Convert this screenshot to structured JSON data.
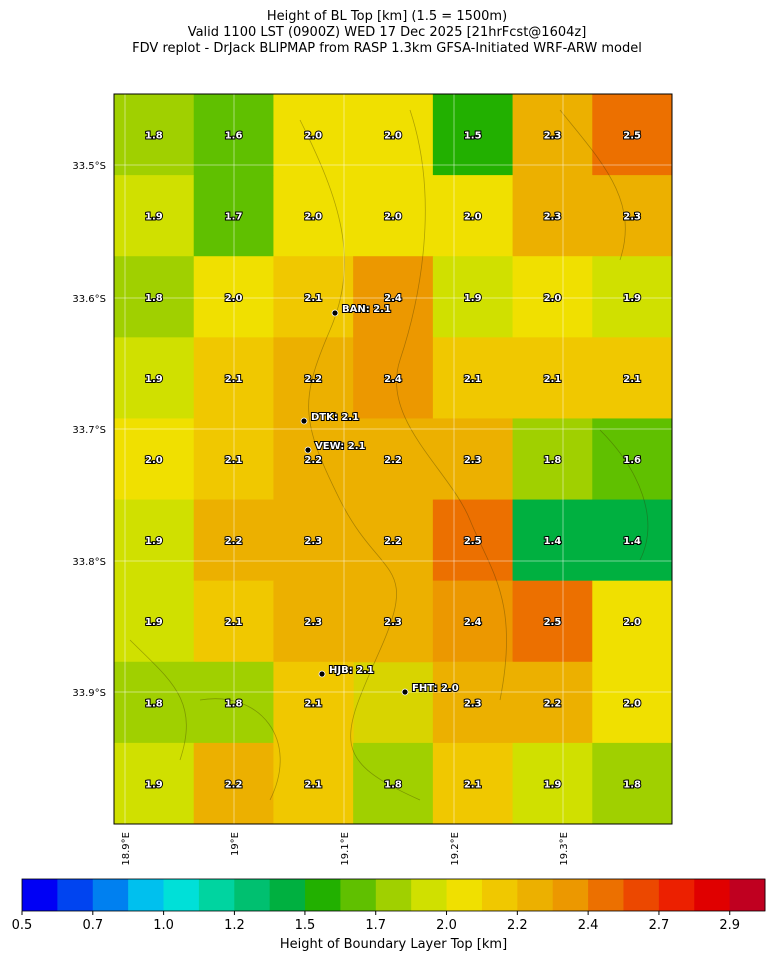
{
  "header": {
    "title_lines": [
      "Height of BL Top [km] (1.5 = 1500m)",
      "Valid 1100 LST (0900Z) WED 17 Dec 2025 [21hrFcst@1604z]",
      "FDV replot - DrJack BLIPMAP from RASP 1.3km GFSA-Initiated WRF-ARW model"
    ]
  },
  "map": {
    "lat_labels": [
      "33.5°S",
      "33.6°S",
      "33.7°S",
      "33.8°S",
      "33.9°S"
    ],
    "lon_labels": [
      "18.9°E",
      "19°E",
      "19.1°E",
      "19.2°E",
      "19.3°E"
    ],
    "rows": [
      {
        "values": [
          1.8,
          1.6,
          2.0,
          2.0,
          1.5,
          2.3,
          2.5
        ],
        "value_labels": [
          "1.8",
          "1.6",
          "2.0",
          "2.0",
          "1.5",
          "2.3",
          "2.5"
        ]
      },
      {
        "values": [
          1.9,
          1.7,
          2.0,
          2.0,
          2.0,
          2.3,
          2.3
        ],
        "value_labels": [
          "1.9",
          "1.7",
          "2.0",
          "2.0",
          "2.0",
          "2.3",
          "2.3"
        ]
      },
      {
        "values": [
          1.8,
          2.0,
          2.1,
          2.4,
          1.9,
          2.0,
          1.9
        ],
        "value_labels": [
          "1.8",
          "2.0",
          "2.1",
          "2.4",
          "1.9",
          "2.0",
          "1.9"
        ]
      },
      {
        "values": [
          1.9,
          2.1,
          2.2,
          2.4,
          2.1,
          2.1,
          2.1
        ],
        "value_labels": [
          "1.9",
          "2.1",
          "2.2",
          "2.4",
          "2.1",
          "2.1",
          "2.1"
        ]
      },
      {
        "values": [
          2.0,
          2.1,
          2.2,
          2.2,
          2.3,
          1.8,
          1.6
        ],
        "value_labels": [
          "2.0",
          "2.1",
          "2.2",
          "2.2",
          "2.3",
          "1.8",
          "1.6"
        ]
      },
      {
        "values": [
          1.9,
          2.2,
          2.3,
          2.2,
          2.5,
          1.4,
          1.4
        ],
        "value_labels": [
          "1.9",
          "2.2",
          "2.3",
          "2.2",
          "2.5",
          "1.4",
          "1.4"
        ]
      },
      {
        "values": [
          1.9,
          2.1,
          2.3,
          2.3,
          2.4,
          2.5,
          2.0
        ],
        "value_labels": [
          "1.9",
          "2.1",
          "2.3",
          "2.3",
          "2.4",
          "2.5",
          "2.0"
        ]
      },
      {
        "values": [
          1.8,
          1.8,
          2.1,
          null,
          2.3,
          2.2,
          2.0
        ],
        "value_labels": [
          "1.8",
          "1.8",
          "2.1",
          null,
          "2.3",
          "2.2",
          "2.0"
        ]
      },
      {
        "values": [
          1.9,
          2.2,
          2.1,
          1.8,
          2.1,
          1.9,
          1.8
        ],
        "value_labels": [
          "1.9",
          "2.2",
          "2.1",
          "1.8",
          "2.1",
          "1.9",
          "1.8"
        ]
      }
    ],
    "stations": [
      {
        "label": "BAN: 2.1"
      },
      {
        "label": "DTK: 2.1"
      },
      {
        "label": "VEW: 2.1"
      },
      {
        "label": "HJB: 2.1"
      },
      {
        "label": "FHT: 2.0"
      }
    ]
  },
  "colorbar": {
    "lim": [
      0.5,
      3.05
    ],
    "colors": [
      "#0000f5",
      "#0044f0",
      "#0080f0",
      "#00c0ee",
      "#00e0d8",
      "#00d4a0",
      "#00c070",
      "#00b040",
      "#22b000",
      "#60c000",
      "#a0d000",
      "#d0e000",
      "#f0e000",
      "#f0c800",
      "#ecb000",
      "#ec9800",
      "#ec7000",
      "#ec4800",
      "#ec2000",
      "#e00000",
      "#c00020"
    ],
    "ticks": [
      {
        "value": 0.5,
        "label": "0.5"
      },
      {
        "value": 0.743,
        "label": "0.7"
      },
      {
        "value": 0.986,
        "label": "1.0"
      },
      {
        "value": 1.229,
        "label": "1.2"
      },
      {
        "value": 1.471,
        "label": "1.5"
      },
      {
        "value": 1.714,
        "label": "1.7"
      },
      {
        "value": 1.957,
        "label": "2.0"
      },
      {
        "value": 2.2,
        "label": "2.2"
      },
      {
        "value": 2.443,
        "label": "2.4"
      },
      {
        "value": 2.686,
        "label": "2.7"
      },
      {
        "value": 2.929,
        "label": "2.9"
      }
    ],
    "label": "Height of Boundary Layer Top [km]"
  }
}
